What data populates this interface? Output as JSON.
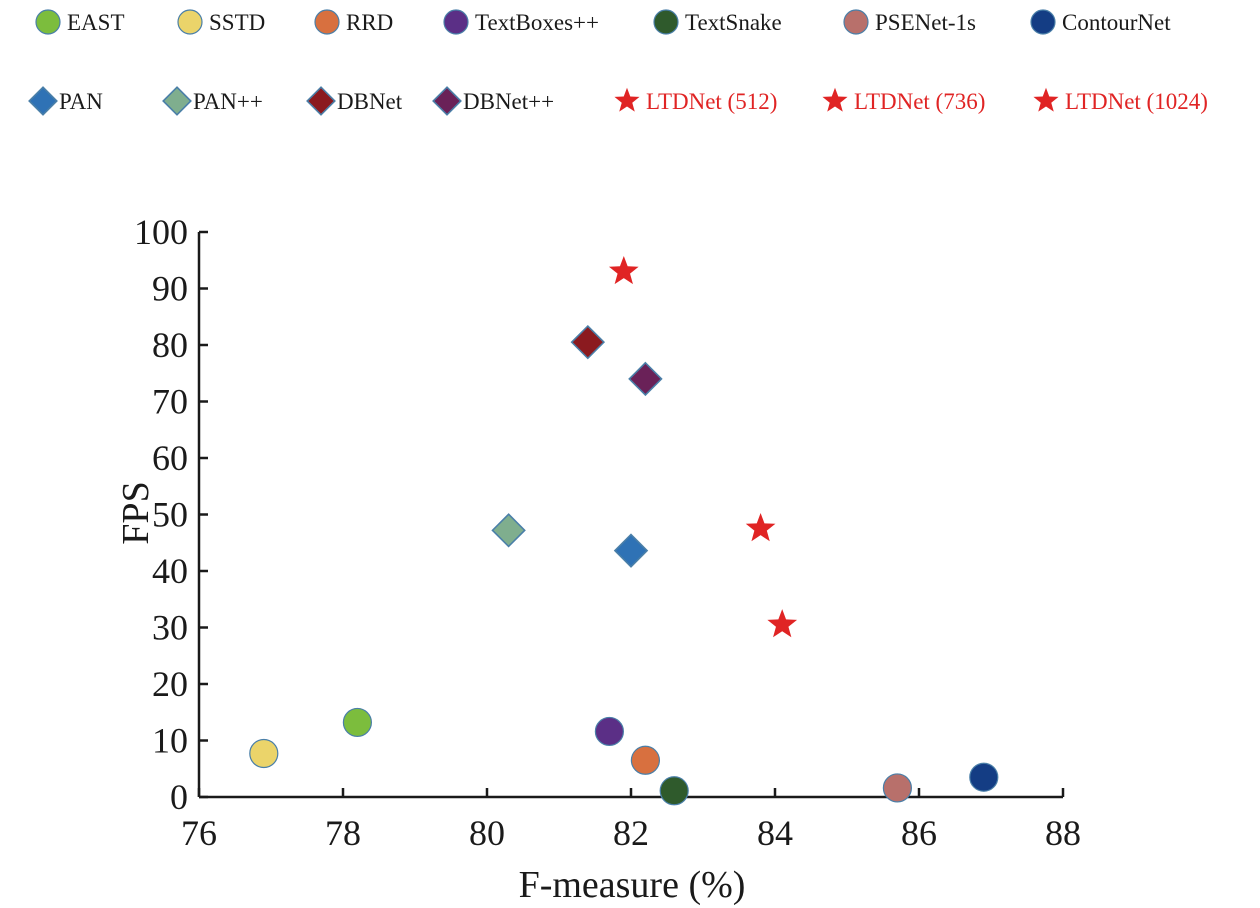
{
  "chart_data": {
    "type": "scatter",
    "title": "",
    "xlabel": "F-measure (%)",
    "ylabel": "FPS",
    "xlim": [
      76,
      88
    ],
    "ylim": [
      0,
      100
    ],
    "xticks": [
      "76",
      "78",
      "80",
      "82",
      "84",
      "86",
      "88"
    ],
    "yticks": [
      "0",
      "10",
      "20",
      "30",
      "40",
      "50",
      "60",
      "70",
      "80",
      "90",
      "100"
    ],
    "grid": false,
    "legend_position": "top",
    "series": [
      {
        "name": "EAST",
        "marker": "circle",
        "color": "#7cbd3d",
        "points": [
          {
            "x": 78.2,
            "y": 13.2
          }
        ]
      },
      {
        "name": "SSTD",
        "marker": "circle",
        "color": "#ebd46a",
        "points": [
          {
            "x": 76.9,
            "y": 7.7
          }
        ]
      },
      {
        "name": "RRD",
        "marker": "circle",
        "color": "#d8703f",
        "points": [
          {
            "x": 82.2,
            "y": 6.5
          }
        ]
      },
      {
        "name": "TextBoxes++",
        "marker": "circle",
        "color": "#5b2f86",
        "points": [
          {
            "x": 81.7,
            "y": 11.6
          }
        ]
      },
      {
        "name": "TextSnake",
        "marker": "circle",
        "color": "#2f5a2c",
        "points": [
          {
            "x": 82.6,
            "y": 1.1
          }
        ]
      },
      {
        "name": "PSENet-1s",
        "marker": "circle",
        "color": "#b8706b",
        "points": [
          {
            "x": 85.7,
            "y": 1.6
          }
        ]
      },
      {
        "name": "ContourNet",
        "marker": "circle",
        "color": "#143d84",
        "points": [
          {
            "x": 86.9,
            "y": 3.5
          }
        ]
      },
      {
        "name": "PAN",
        "marker": "diamond",
        "color": "#2f72b5",
        "points": [
          {
            "x": 82.0,
            "y": 43.6
          }
        ]
      },
      {
        "name": "PAN++",
        "marker": "diamond",
        "color": "#7fae8e",
        "points": [
          {
            "x": 80.3,
            "y": 47.2
          }
        ]
      },
      {
        "name": "DBNet",
        "marker": "diamond",
        "color": "#8b1a1f",
        "points": [
          {
            "x": 81.4,
            "y": 80.5
          }
        ]
      },
      {
        "name": "DBNet++",
        "marker": "diamond",
        "color": "#6a2158",
        "points": [
          {
            "x": 82.2,
            "y": 74.0
          }
        ]
      },
      {
        "name": "LTDNet (512)",
        "marker": "star",
        "color": "#e02424",
        "points": [
          {
            "x": 81.9,
            "y": 93.0
          }
        ]
      },
      {
        "name": "LTDNet (736)",
        "marker": "star",
        "color": "#e02424",
        "points": [
          {
            "x": 83.8,
            "y": 47.5
          }
        ]
      },
      {
        "name": "LTDNet (1024)",
        "marker": "star",
        "color": "#e02424",
        "points": [
          {
            "x": 84.1,
            "y": 30.5
          }
        ]
      }
    ]
  },
  "colors": {
    "axis": "#1a1a1a",
    "legend_text": "#1a1a1a",
    "ltdnet_text": "#e02424",
    "marker_edge": "#4a7fa8"
  }
}
